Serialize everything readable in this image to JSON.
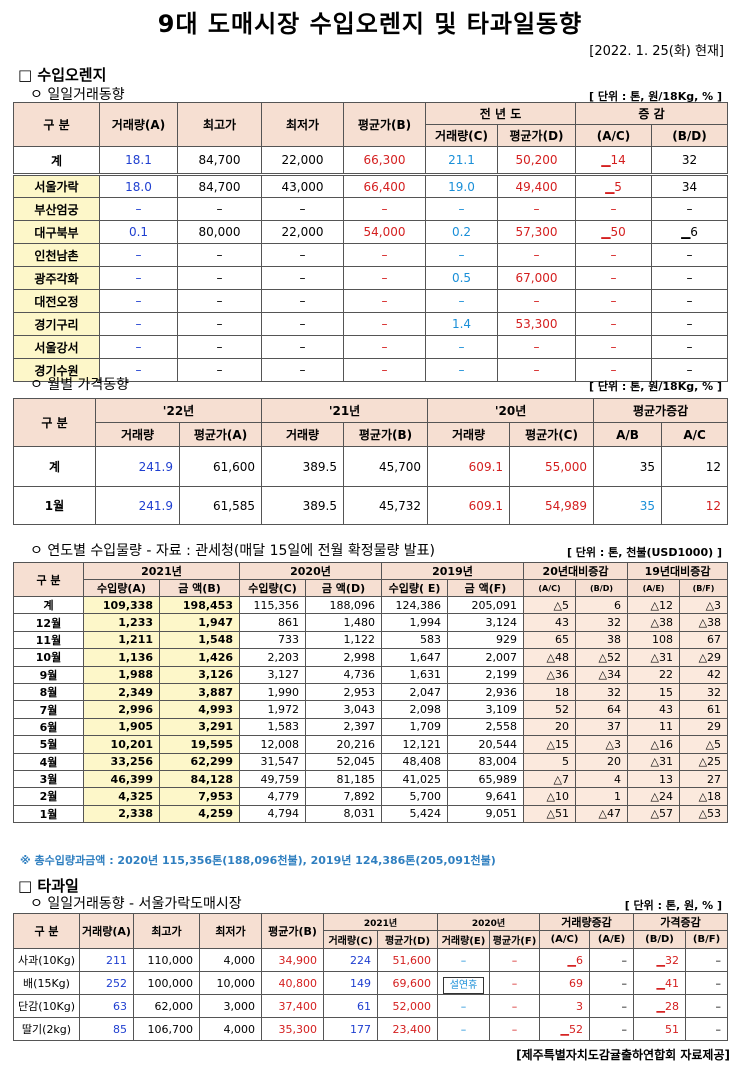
{
  "title": "9대 도매시장 수입오렌지 및 타과일동향",
  "date": "[2022. 1. 25(화) 현재]",
  "orange": {
    "section": "□ 수입오렌지",
    "daily": {
      "subtitle": "ㅇ 일일거래동향",
      "unit": "[ 단위 : 톤, 원/18Kg, % ]",
      "h": {
        "gubun": "구 분",
        "vol": "거래량(A)",
        "max": "최고가",
        "min": "최저가",
        "avg": "평균가(B)",
        "prev": "전 년 도",
        "pvol": "거래량(C)",
        "pavg": "평균가(D)",
        "chg": "증 감",
        "ac": "(A/C)",
        "bd": "(B/D)"
      },
      "rows": [
        {
          "name": "계",
          "vol": "18.1",
          "max": "84,700",
          "min": "22,000",
          "avg": "66,300",
          "pvol": "21.1",
          "pavg": "50,200",
          "ac": "▁14",
          "bd": "32"
        },
        {
          "name": "서울가락",
          "vol": "18.0",
          "max": "84,700",
          "min": "43,000",
          "avg": "66,400",
          "pvol": "19.0",
          "pavg": "49,400",
          "ac": "▁5",
          "bd": "34"
        },
        {
          "name": "부산엄궁",
          "vol": "–",
          "max": "–",
          "min": "–",
          "avg": "–",
          "pvol": "–",
          "pavg": "–",
          "ac": "–",
          "bd": "–"
        },
        {
          "name": "대구북부",
          "vol": "0.1",
          "max": "80,000",
          "min": "22,000",
          "avg": "54,000",
          "pvol": "0.2",
          "pavg": "57,300",
          "ac": "▁50",
          "bd": "▁6"
        },
        {
          "name": "인천남촌",
          "vol": "–",
          "max": "–",
          "min": "–",
          "avg": "–",
          "pvol": "–",
          "pavg": "–",
          "ac": "–",
          "bd": "–"
        },
        {
          "name": "광주각화",
          "vol": "–",
          "max": "–",
          "min": "–",
          "avg": "–",
          "pvol": "0.5",
          "pavg": "67,000",
          "ac": "–",
          "bd": "–"
        },
        {
          "name": "대전오정",
          "vol": "–",
          "max": "–",
          "min": "–",
          "avg": "–",
          "pvol": "–",
          "pavg": "–",
          "ac": "–",
          "bd": "–"
        },
        {
          "name": "경기구리",
          "vol": "–",
          "max": "–",
          "min": "–",
          "avg": "–",
          "pvol": "1.4",
          "pavg": "53,300",
          "ac": "–",
          "bd": "–"
        },
        {
          "name": "서울강서",
          "vol": "–",
          "max": "–",
          "min": "–",
          "avg": "–",
          "pvol": "–",
          "pavg": "–",
          "ac": "–",
          "bd": "–"
        },
        {
          "name": "경기수원",
          "vol": "–",
          "max": "–",
          "min": "–",
          "avg": "–",
          "pvol": "–",
          "pavg": "–",
          "ac": "–",
          "bd": "–"
        }
      ]
    },
    "monthly": {
      "subtitle": "ㅇ 월별 가격동향",
      "unit": "[ 단위 : 톤, 원/18Kg, % ]",
      "h": {
        "gubun": "구 분",
        "y22": "'22년",
        "y21": "'21년",
        "y20": "'20년",
        "rate": "평균가증감",
        "vol": "거래량",
        "avgA": "평균가(A)",
        "avgB": "평균가(B)",
        "avgC": "평균가(C)",
        "ab": "A/B",
        "ac": "A/C"
      },
      "rows": [
        {
          "name": "계",
          "v22": "241.9",
          "a22": "61,600",
          "v21": "389.5",
          "a21": "45,700",
          "v20": "609.1",
          "a20": "55,000",
          "ab": "35",
          "ac": "12"
        },
        {
          "name": "1월",
          "v22": "241.9",
          "a22": "61,585",
          "v21": "389.5",
          "a21": "45,732",
          "v20": "609.1",
          "a20": "54,989",
          "ab": "35",
          "ac": "12"
        }
      ]
    },
    "yearly": {
      "subtitle": "ㅇ 연도별 수입물량 - 자료 : 관세청(매달 15일에 전월 확정물량 발표)",
      "unit": "[ 단위 : 톤, 천불(USD1000) ]",
      "h": {
        "gubun": "구 분",
        "y21": "2021년",
        "y20": "2020년",
        "y19": "2019년",
        "r20": "20년대비증감",
        "r19": "19년대비증감",
        "qa": "수입량(A)",
        "ab": "금 액(B)",
        "qc": "수입량(C)",
        "ad": "금 액(D)",
        "qe": "수입량( E)",
        "af": "금 액(F)",
        "rac": "(A/C)",
        "rbd": "(B/D)",
        "rae": "(A/E)",
        "rbf": "(B/F)"
      },
      "rows": [
        {
          "name": "계",
          "c": [
            "109,338",
            "198,453",
            "115,356",
            "188,096",
            "124,386",
            "205,091",
            "△5",
            "6",
            "△12",
            "△3"
          ]
        },
        {
          "name": "12월",
          "c": [
            "1,233",
            "1,947",
            "861",
            "1,480",
            "1,994",
            "3,124",
            "43",
            "32",
            "△38",
            "△38"
          ]
        },
        {
          "name": "11월",
          "c": [
            "1,211",
            "1,548",
            "733",
            "1,122",
            "583",
            "929",
            "65",
            "38",
            "108",
            "67"
          ]
        },
        {
          "name": "10월",
          "c": [
            "1,136",
            "1,426",
            "2,203",
            "2,998",
            "1,647",
            "2,007",
            "△48",
            "△52",
            "△31",
            "△29"
          ]
        },
        {
          "name": "9월",
          "c": [
            "1,988",
            "3,126",
            "3,127",
            "4,736",
            "1,631",
            "2,199",
            "△36",
            "△34",
            "22",
            "42"
          ]
        },
        {
          "name": "8월",
          "c": [
            "2,349",
            "3,887",
            "1,990",
            "2,953",
            "2,047",
            "2,936",
            "18",
            "32",
            "15",
            "32"
          ]
        },
        {
          "name": "7월",
          "c": [
            "2,996",
            "4,993",
            "1,972",
            "3,043",
            "2,098",
            "3,109",
            "52",
            "64",
            "43",
            "61"
          ]
        },
        {
          "name": "6월",
          "c": [
            "1,905",
            "3,291",
            "1,583",
            "2,397",
            "1,709",
            "2,558",
            "20",
            "37",
            "11",
            "29"
          ]
        },
        {
          "name": "5월",
          "c": [
            "10,201",
            "19,595",
            "12,008",
            "20,216",
            "12,121",
            "20,544",
            "△15",
            "△3",
            "△16",
            "△5"
          ]
        },
        {
          "name": "4월",
          "c": [
            "33,256",
            "62,299",
            "31,547",
            "52,045",
            "48,408",
            "83,004",
            "5",
            "20",
            "△31",
            "△25"
          ]
        },
        {
          "name": "3월",
          "c": [
            "46,399",
            "84,128",
            "49,759",
            "81,185",
            "41,025",
            "65,989",
            "△7",
            "4",
            "13",
            "27"
          ]
        },
        {
          "name": "2월",
          "c": [
            "4,325",
            "7,953",
            "4,779",
            "7,892",
            "5,700",
            "9,641",
            "△10",
            "1",
            "△24",
            "△18"
          ]
        },
        {
          "name": "1월",
          "c": [
            "2,338",
            "4,259",
            "4,794",
            "8,031",
            "5,424",
            "9,051",
            "△51",
            "△47",
            "△57",
            "△53"
          ]
        }
      ],
      "note": "※ 총수입량과금액 : 2020년 115,356톤(188,096천불),  2019년 124,386톤(205,091천불)"
    }
  },
  "fruit": {
    "section": "□ 타과일",
    "subtitle": "ㅇ 일일거래동향 - 서울가락도매시장",
    "unit": "[ 단위 : 톤, 원, % ]",
    "h": {
      "gubun": "구 분",
      "vol": "거래량(A)",
      "max": "최고가",
      "min": "최저가",
      "avg": "평균가(B)",
      "y21": "2021년",
      "y20": "2020년",
      "volchg": "거래량증감",
      "pricechg": "가격증감",
      "c": "거래량(C)",
      "d": "평균가(D)",
      "e": "거래량(E)",
      "f": "평균가(F)",
      "ac": "(A/C)",
      "ae": "(A/E)",
      "bd": "(B/D)",
      "bf": "(B/F)"
    },
    "rows": [
      {
        "name": "사과(10Kg)",
        "vol": "211",
        "max": "110,000",
        "min": "4,000",
        "avg": "34,900",
        "c": "224",
        "d": "51,600",
        "e": "–",
        "f": "–",
        "ac": "▁6",
        "ae": "–",
        "bd": "▁32",
        "bf": "–"
      },
      {
        "name": "배(15Kg)",
        "vol": "252",
        "max": "100,000",
        "min": "10,000",
        "avg": "40,800",
        "c": "149",
        "d": "69,600",
        "e": "",
        "f": "–",
        "ac": "69",
        "ae": "–",
        "bd": "▁41",
        "bf": "–"
      },
      {
        "name": "단감(10Kg)",
        "vol": "63",
        "max": "62,000",
        "min": "3,000",
        "avg": "37,400",
        "c": "61",
        "d": "52,000",
        "e": "–",
        "f": "–",
        "ac": "3",
        "ae": "–",
        "bd": "▁28",
        "bf": "–"
      },
      {
        "name": "딸기(2kg)",
        "vol": "85",
        "max": "106,700",
        "min": "4,000",
        "avg": "35,300",
        "c": "177",
        "d": "23,400",
        "e": "–",
        "f": "–",
        "ac": "▁52",
        "ae": "–",
        "bd": "51",
        "bf": "–"
      }
    ],
    "holiday": "설연휴"
  },
  "credit": "[제주특별자치도감귤출하연합회 자료제공]"
}
